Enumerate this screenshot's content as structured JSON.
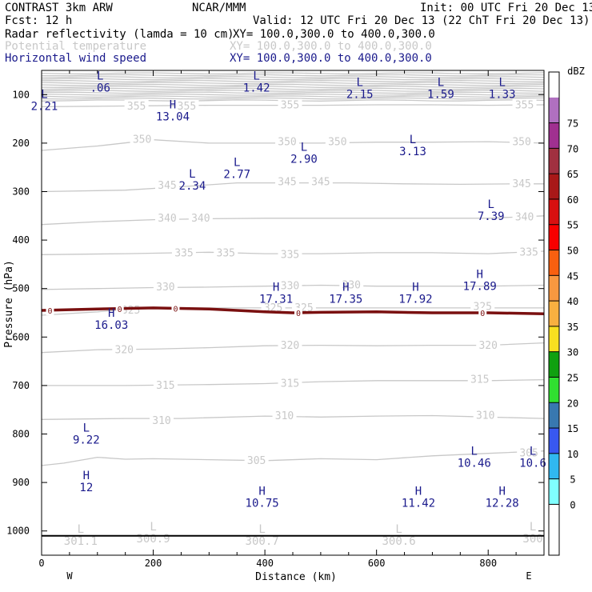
{
  "header": {
    "model": "CONTRAST  3km ARW",
    "org": "NCAR/MMM",
    "init": "Init: 00 UTC Fri 20 Dec 13",
    "fcst": "Fcst:   12 h",
    "valid": "Valid: 12 UTC Fri 20 Dec 13 (22 ChT Fri 20 Dec 13)",
    "field1_name": "Radar reflectivity (lamda = 10 cm)",
    "field1_xy": "XY= 100.0,300.0 to 400.0,300.0",
    "field2_name": "Potential temperature",
    "field2_xy": "XY= 100.0,300.0 to 400.0,300.0",
    "field3_name": "Horizontal wind speed",
    "field3_xy": "XY= 100.0,300.0 to 400.0,300.0"
  },
  "colors": {
    "theta": "#c8c8c8",
    "wind_label": "#1a1a8c",
    "freezing": "#7a1010",
    "axis": "#000000"
  },
  "chart_data": {
    "type": "line",
    "xlabel": "Distance (km)",
    "ylabel": "Pressure (hPa)",
    "xlim": [
      0,
      900
    ],
    "ylim": [
      1050,
      50
    ],
    "x_ticks": [
      0,
      200,
      400,
      600,
      800
    ],
    "y_ticks": [
      100,
      200,
      300,
      400,
      500,
      600,
      700,
      800,
      900,
      1000
    ],
    "x_end_labels": {
      "left": "W",
      "right": "E"
    },
    "theta_contours": [
      {
        "label": "305",
        "points": [
          [
            0,
            865
          ],
          [
            40,
            860
          ],
          [
            100,
            848
          ],
          [
            150,
            852
          ],
          [
            200,
            851
          ],
          [
            300,
            853
          ],
          [
            400,
            855
          ],
          [
            500,
            851
          ],
          [
            600,
            853
          ],
          [
            700,
            845
          ],
          [
            800,
            840
          ],
          [
            900,
            835
          ]
        ],
        "label_at": [
          [
            385,
            855
          ],
          [
            873,
            840
          ]
        ]
      },
      {
        "label": "310",
        "points": [
          [
            0,
            770
          ],
          [
            150,
            768
          ],
          [
            250,
            768
          ],
          [
            400,
            763
          ],
          [
            500,
            765
          ],
          [
            600,
            763
          ],
          [
            700,
            762
          ],
          [
            800,
            765
          ],
          [
            900,
            768
          ]
        ],
        "label_at": [
          [
            215,
            773
          ],
          [
            435,
            763
          ],
          [
            795,
            762
          ]
        ]
      },
      {
        "label": "315",
        "points": [
          [
            0,
            700
          ],
          [
            150,
            700
          ],
          [
            300,
            698
          ],
          [
            400,
            696
          ],
          [
            500,
            692
          ],
          [
            600,
            690
          ],
          [
            700,
            690
          ],
          [
            800,
            690
          ],
          [
            900,
            688
          ]
        ],
        "label_at": [
          [
            222,
            700
          ],
          [
            445,
            696
          ],
          [
            785,
            688
          ]
        ]
      },
      {
        "label": "320",
        "points": [
          [
            0,
            632
          ],
          [
            100,
            626
          ],
          [
            200,
            625
          ],
          [
            300,
            622
          ],
          [
            400,
            618
          ],
          [
            500,
            617
          ],
          [
            600,
            618
          ],
          [
            700,
            617
          ],
          [
            800,
            617
          ],
          [
            900,
            612
          ]
        ],
        "label_at": [
          [
            148,
            627
          ],
          [
            445,
            618
          ],
          [
            800,
            618
          ]
        ]
      },
      {
        "label": "325",
        "points": [
          [
            0,
            555
          ],
          [
            100,
            548
          ],
          [
            150,
            543
          ],
          [
            220,
            540
          ],
          [
            300,
            540
          ],
          [
            400,
            540
          ],
          [
            500,
            540
          ],
          [
            600,
            540
          ],
          [
            700,
            540
          ],
          [
            800,
            540
          ],
          [
            900,
            540
          ]
        ],
        "label_at": [
          [
            160,
            545
          ],
          [
            415,
            540
          ],
          [
            470,
            540
          ],
          [
            790,
            538
          ]
        ]
      },
      {
        "label": "330",
        "points": [
          [
            0,
            502
          ],
          [
            100,
            500
          ],
          [
            200,
            498
          ],
          [
            300,
            497
          ],
          [
            400,
            495
          ],
          [
            500,
            493
          ],
          [
            600,
            495
          ],
          [
            700,
            495
          ],
          [
            800,
            495
          ],
          [
            900,
            493
          ]
        ],
        "label_at": [
          [
            222,
            497
          ],
          [
            445,
            495
          ],
          [
            555,
            493
          ]
        ]
      },
      {
        "label": "335",
        "points": [
          [
            0,
            430
          ],
          [
            150,
            428
          ],
          [
            300,
            425
          ],
          [
            400,
            428
          ],
          [
            500,
            428
          ],
          [
            600,
            426
          ],
          [
            700,
            426
          ],
          [
            800,
            428
          ],
          [
            900,
            423
          ]
        ],
        "label_at": [
          [
            255,
            427
          ],
          [
            330,
            427
          ],
          [
            445,
            430
          ],
          [
            873,
            425
          ]
        ]
      },
      {
        "label": "340",
        "points": [
          [
            0,
            368
          ],
          [
            100,
            362
          ],
          [
            200,
            358
          ],
          [
            300,
            356
          ],
          [
            400,
            355
          ],
          [
            500,
            355
          ],
          [
            600,
            355
          ],
          [
            700,
            355
          ],
          [
            800,
            355
          ],
          [
            900,
            350
          ]
        ],
        "label_at": [
          [
            225,
            355
          ],
          [
            285,
            355
          ],
          [
            865,
            353
          ]
        ]
      },
      {
        "label": "345",
        "points": [
          [
            0,
            300
          ],
          [
            150,
            297
          ],
          [
            250,
            290
          ],
          [
            350,
            282
          ],
          [
            450,
            282
          ],
          [
            550,
            282
          ],
          [
            650,
            284
          ],
          [
            750,
            285
          ],
          [
            850,
            284
          ],
          [
            900,
            284
          ]
        ],
        "label_at": [
          [
            225,
            288
          ],
          [
            440,
            280
          ],
          [
            500,
            280
          ],
          [
            860,
            284
          ]
        ]
      },
      {
        "label": "350",
        "points": [
          [
            0,
            215
          ],
          [
            100,
            206
          ],
          [
            200,
            193
          ],
          [
            300,
            200
          ],
          [
            400,
            200
          ],
          [
            500,
            200
          ],
          [
            600,
            198
          ],
          [
            700,
            198
          ],
          [
            800,
            197
          ],
          [
            900,
            200
          ]
        ],
        "label_at": [
          [
            180,
            193
          ],
          [
            440,
            198
          ],
          [
            530,
            198
          ],
          [
            860,
            198
          ]
        ]
      },
      {
        "label": "355",
        "points": [
          [
            0,
            125
          ],
          [
            100,
            124
          ],
          [
            200,
            123
          ],
          [
            300,
            122
          ],
          [
            400,
            122
          ],
          [
            500,
            122
          ],
          [
            600,
            121
          ],
          [
            700,
            121
          ],
          [
            800,
            122
          ],
          [
            900,
            121
          ]
        ],
        "label_at": [
          [
            170,
            124
          ],
          [
            260,
            124
          ],
          [
            445,
            122
          ],
          [
            865,
            122
          ]
        ]
      }
    ],
    "upper_theta_levels": [
      56,
      60,
      64,
      68,
      72,
      76,
      80,
      84,
      88,
      92,
      96,
      100,
      104,
      108,
      112
    ],
    "freezing_level": {
      "points": [
        [
          0,
          545
        ],
        [
          100,
          542
        ],
        [
          200,
          540
        ],
        [
          300,
          542
        ],
        [
          350,
          545
        ],
        [
          400,
          548
        ],
        [
          450,
          550
        ],
        [
          500,
          549
        ],
        [
          600,
          548
        ],
        [
          700,
          550
        ],
        [
          800,
          550
        ],
        [
          900,
          552
        ]
      ],
      "markers": [
        [
          15,
          545
        ],
        [
          140,
          542
        ],
        [
          240,
          541
        ],
        [
          460,
          550
        ],
        [
          790,
          550
        ]
      ],
      "marker_label": "0"
    },
    "wind_extrema": [
      {
        "kind": "L",
        "value": ".06",
        "x": 105,
        "p": 69
      },
      {
        "kind": "L",
        "value": "1.42",
        "x": 385,
        "p": 69
      },
      {
        "kind": "L",
        "value": "2.15",
        "x": 570,
        "p": 82
      },
      {
        "kind": "L",
        "value": "1.59",
        "x": 715,
        "p": 82
      },
      {
        "kind": "L",
        "value": "1.33",
        "x": 825,
        "p": 82
      },
      {
        "kind": "L",
        "value": "2.21",
        "x": 5,
        "p": 107
      },
      {
        "kind": "H",
        "value": "13.04",
        "x": 235,
        "p": 128
      },
      {
        "kind": "L",
        "value": "3.13",
        "x": 665,
        "p": 200
      },
      {
        "kind": "L",
        "value": "2.90",
        "x": 470,
        "p": 216
      },
      {
        "kind": "L",
        "value": "2.77",
        "x": 350,
        "p": 247
      },
      {
        "kind": "L",
        "value": "2.34",
        "x": 270,
        "p": 271
      },
      {
        "kind": "L",
        "value": "7.39",
        "x": 805,
        "p": 334
      },
      {
        "kind": "H",
        "value": "17.89",
        "x": 785,
        "p": 478
      },
      {
        "kind": "H",
        "value": "17.31",
        "x": 420,
        "p": 505
      },
      {
        "kind": "H",
        "value": "17.35",
        "x": 545,
        "p": 505
      },
      {
        "kind": "H",
        "value": "17.92",
        "x": 670,
        "p": 505
      },
      {
        "kind": "H",
        "value": "16.03",
        "x": 125,
        "p": 558
      },
      {
        "kind": "L",
        "value": "9.22",
        "x": 80,
        "p": 795
      },
      {
        "kind": "L",
        "value": "10.46",
        "x": 775,
        "p": 843
      },
      {
        "kind": "L",
        "value": "10.6",
        "x": 880,
        "p": 843
      },
      {
        "kind": "H",
        "value": "12",
        "x": 80,
        "p": 893
      },
      {
        "kind": "H",
        "value": "10.75",
        "x": 395,
        "p": 925
      },
      {
        "kind": "H",
        "value": "11.42",
        "x": 675,
        "p": 925
      },
      {
        "kind": "H",
        "value": "12.28",
        "x": 825,
        "p": 925
      }
    ],
    "theta_extrema": [
      {
        "kind": "L",
        "value": "301.1",
        "x": 70,
        "p": 1017
      },
      {
        "kind": "L",
        "value": "300.9",
        "x": 200,
        "p": 1012
      },
      {
        "kind": "L",
        "value": "300.7",
        "x": 395,
        "p": 1017
      },
      {
        "kind": "L",
        "value": "300.6",
        "x": 640,
        "p": 1017
      },
      {
        "kind": "L",
        "value": "300",
        "x": 880,
        "p": 1012
      }
    ],
    "surface_pressure": 1010,
    "colorbar": {
      "unit": "dBZ",
      "levels": [
        "0",
        "5",
        "10",
        "15",
        "20",
        "25",
        "30",
        "35",
        "40",
        "45",
        "50",
        "55",
        "60",
        "65",
        "70",
        "75"
      ],
      "colors": [
        "#ffffff",
        "#ffffff",
        "#80ffff",
        "#30b8f0",
        "#3858f0",
        "#3878b0",
        "#30e030",
        "#10a010",
        "#f8e020",
        "#f8b040",
        "#f89840",
        "#f86010",
        "#f80000",
        "#d81010",
        "#a81818",
        "#a03040",
        "#a03090",
        "#b070c0",
        "#ffffff"
      ]
    }
  }
}
